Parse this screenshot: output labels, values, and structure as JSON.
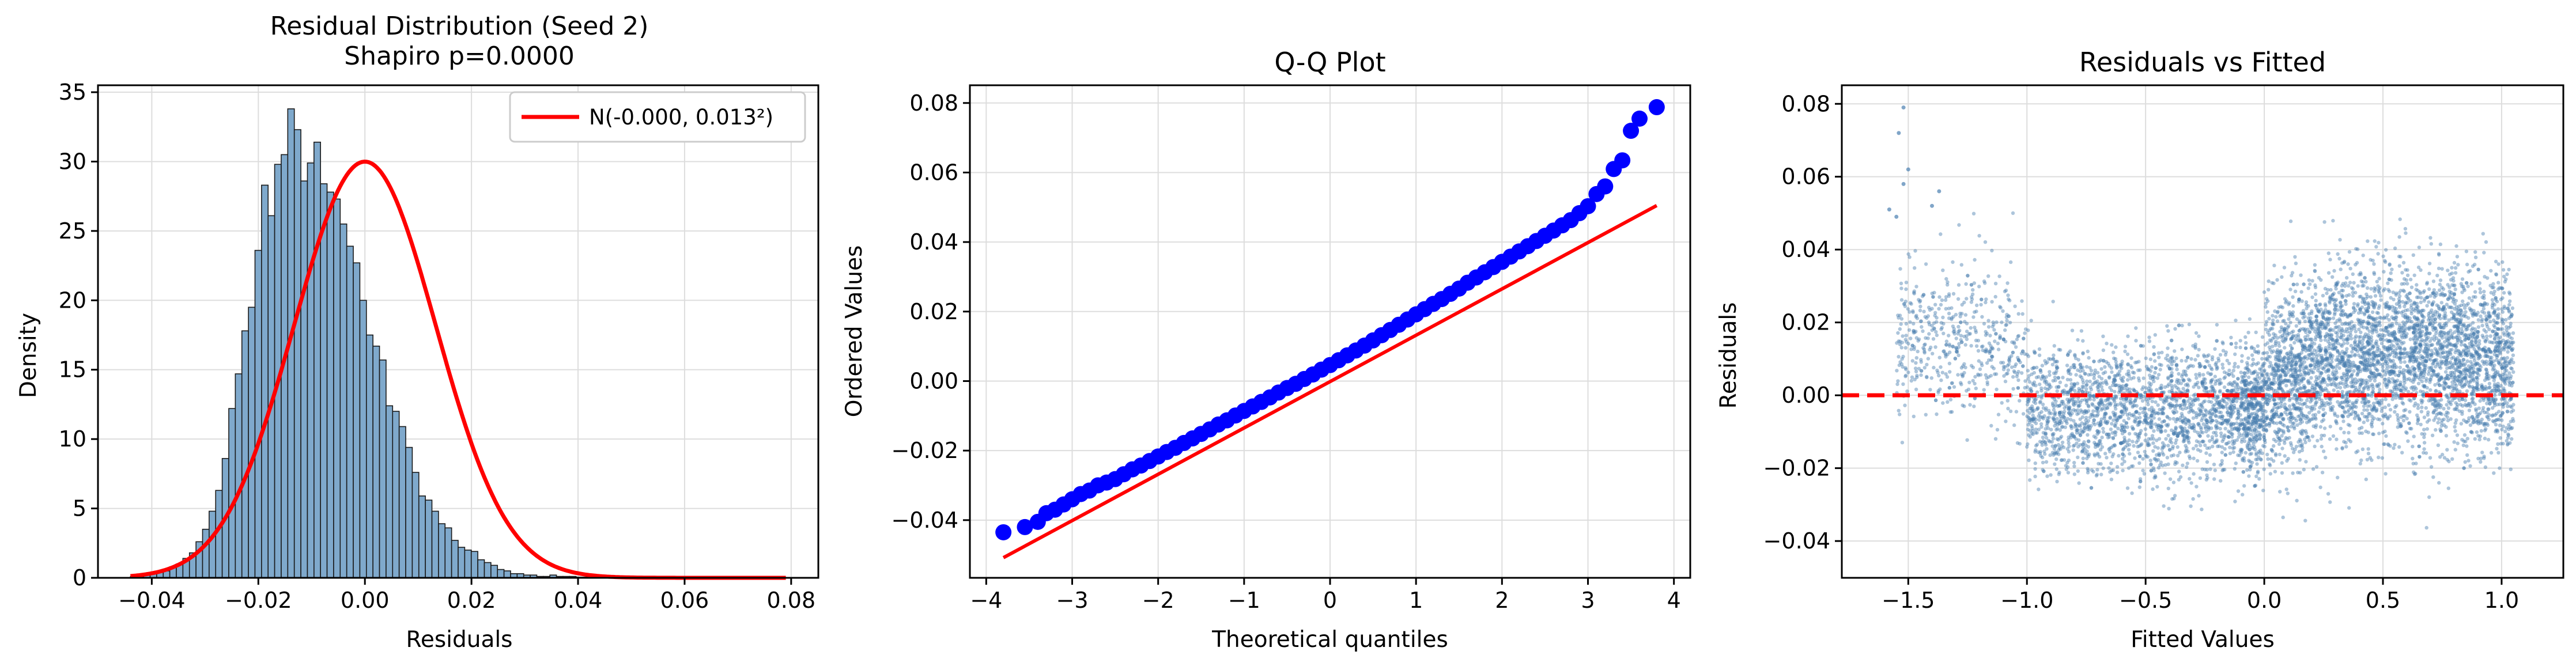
{
  "chart_data": [
    {
      "type": "histogram",
      "title_line1": "Residual Distribution (Seed 2)",
      "title_line2": "Shapiro p=0.0000",
      "xlabel": "Residuals",
      "ylabel": "Density",
      "xlim": [
        -0.0501,
        0.0851
      ],
      "ylim": [
        0,
        35.5
      ],
      "xticks": [
        -0.04,
        -0.02,
        0.0,
        0.02,
        0.04,
        0.06,
        0.08
      ],
      "xtick_labels": [
        "−0.04",
        "−0.02",
        "0.00",
        "0.02",
        "0.04",
        "0.06",
        "0.08"
      ],
      "yticks": [
        0,
        5,
        10,
        15,
        20,
        25,
        30,
        35
      ],
      "ytick_labels": [
        "0",
        "5",
        "10",
        "15",
        "20",
        "25",
        "30",
        "35"
      ],
      "grid": true,
      "legend": {
        "location": "top-right",
        "label": "N(-0.000, 0.013²)"
      },
      "bins": {
        "start": -0.044,
        "width": 0.00123,
        "density": [
          0.1,
          0.1,
          0.2,
          0.3,
          0.4,
          0.5,
          0.8,
          1.0,
          1.4,
          1.8,
          2.6,
          3.5,
          4.8,
          6.3,
          8.6,
          12.2,
          14.7,
          17.8,
          19.5,
          23.6,
          28.3,
          26.1,
          29.8,
          30.5,
          33.8,
          32.3,
          28.6,
          29.9,
          31.4,
          28.4,
          27.8,
          27.3,
          25.5,
          23.9,
          22.7,
          20.0,
          17.5,
          16.7,
          15.7,
          12.4,
          12.0,
          10.9,
          9.4,
          7.6,
          5.9,
          5.6,
          4.8,
          3.9,
          3.6,
          2.7,
          2.2,
          2.0,
          1.9,
          1.3,
          1.1,
          0.9,
          0.6,
          0.5,
          0.3,
          0.3,
          0.2,
          0.2,
          0.1,
          0.1,
          0.2,
          0.1,
          0.1,
          0.1,
          0.05,
          0.05,
          0.05,
          0.05,
          0.03,
          0.03,
          0.02,
          0.02,
          0.01,
          0.01,
          0.01,
          0.01,
          0.01,
          0.01,
          0.01,
          0.01,
          0.01,
          0.01,
          0.01,
          0.01,
          0.01,
          0.01,
          0.01,
          0.01,
          0.01,
          0.01,
          0.01,
          0.01,
          0.01,
          0.01,
          0.01,
          0.01
        ]
      },
      "normal_curve": {
        "mean": 0.0,
        "sd": 0.0133,
        "x_range": [
          -0.044,
          0.079
        ],
        "color": "#ff0000"
      },
      "bar_color": "#7fa9cc"
    },
    {
      "type": "scatter",
      "subtype": "qq",
      "title": "Q-Q Plot",
      "xlabel": "Theoretical quantiles",
      "ylabel": "Ordered Values",
      "xlim": [
        -4.19,
        4.19
      ],
      "ylim": [
        -0.0566,
        0.0851
      ],
      "xticks": [
        -4,
        -3,
        -2,
        -1,
        0,
        1,
        2,
        3,
        4
      ],
      "xtick_labels": [
        "−4",
        "−3",
        "−2",
        "−1",
        "0",
        "1",
        "2",
        "3",
        "4"
      ],
      "yticks": [
        -0.04,
        -0.02,
        0.0,
        0.02,
        0.04,
        0.06,
        0.08
      ],
      "ytick_labels": [
        "−0.04",
        "−0.02",
        "0.00",
        "0.02",
        "0.04",
        "0.06",
        "0.08"
      ],
      "grid": true,
      "fit_line": {
        "x": [
          -3.8,
          3.8
        ],
        "y": [
          -0.0508,
          0.0505
        ],
        "color": "#ff0000"
      },
      "points": {
        "x": [
          -3.8,
          -3.55,
          -3.4,
          -3.3,
          -3.2,
          -3.1,
          -3.0,
          -2.9,
          -2.8,
          -2.7,
          -2.6,
          -2.5,
          -2.4,
          -2.3,
          -2.2,
          -2.1,
          -2.0,
          -1.9,
          -1.8,
          -1.7,
          -1.6,
          -1.5,
          -1.4,
          -1.3,
          -1.2,
          -1.1,
          -1.0,
          -0.9,
          -0.8,
          -0.7,
          -0.6,
          -0.5,
          -0.4,
          -0.3,
          -0.2,
          -0.1,
          0.0,
          0.1,
          0.2,
          0.3,
          0.4,
          0.5,
          0.6,
          0.7,
          0.8,
          0.9,
          1.0,
          1.1,
          1.2,
          1.3,
          1.4,
          1.5,
          1.6,
          1.7,
          1.8,
          1.9,
          2.0,
          2.1,
          2.2,
          2.3,
          2.4,
          2.5,
          2.6,
          2.7,
          2.8,
          2.9,
          3.0,
          3.1,
          3.2,
          3.3,
          3.4,
          3.5,
          3.6,
          3.8
        ],
        "y": [
          -0.0435,
          -0.042,
          -0.0405,
          -0.038,
          -0.037,
          -0.0355,
          -0.034,
          -0.0325,
          -0.0315,
          -0.03,
          -0.0292,
          -0.0282,
          -0.0268,
          -0.0254,
          -0.0243,
          -0.023,
          -0.0217,
          -0.0204,
          -0.0192,
          -0.0178,
          -0.0165,
          -0.0152,
          -0.0139,
          -0.0125,
          -0.0113,
          -0.0099,
          -0.0086,
          -0.0073,
          -0.006,
          -0.0047,
          -0.0033,
          -0.002,
          -0.0008,
          0.0006,
          0.0019,
          0.0033,
          0.0046,
          0.006,
          0.0074,
          0.0088,
          0.0102,
          0.0117,
          0.0132,
          0.0147,
          0.0162,
          0.0177,
          0.0192,
          0.0207,
          0.0222,
          0.0236,
          0.0251,
          0.0266,
          0.0283,
          0.0298,
          0.0313,
          0.0328,
          0.0343,
          0.0358,
          0.0373,
          0.0388,
          0.0403,
          0.0418,
          0.0433,
          0.0448,
          0.0463,
          0.0483,
          0.0503,
          0.0538,
          0.056,
          0.061,
          0.0635,
          0.072,
          0.0755,
          0.0788
        ],
        "color": "#0000ff"
      }
    },
    {
      "type": "scatter",
      "title": "Residuals vs Fitted",
      "xlabel": "Fitted Values",
      "ylabel": "Residuals",
      "xlim": [
        -1.78,
        1.26
      ],
      "ylim": [
        -0.0501,
        0.0851
      ],
      "xticks": [
        -1.5,
        -1.0,
        -0.5,
        0.0,
        0.5,
        1.0
      ],
      "xtick_labels": [
        "−1.5",
        "−1.0",
        "−0.5",
        "0.0",
        "0.5",
        "1.0"
      ],
      "yticks": [
        -0.04,
        -0.02,
        0.0,
        0.02,
        0.04,
        0.06,
        0.08
      ],
      "ytick_labels": [
        "−0.04",
        "−0.02",
        "0.00",
        "0.02",
        "0.04",
        "0.06",
        "0.08"
      ],
      "grid": true,
      "reference_line": {
        "y": 0.0,
        "color": "#ff0000",
        "style": "dashed"
      },
      "point_color": "#4a7fb0",
      "distribution_note": "dense cloud (~8000 pts) from fitted -1.6 to 1.05, residuals mostly -0.03 to 0.04; sparse outliers near -1.5 up to 0.079"
    }
  ]
}
